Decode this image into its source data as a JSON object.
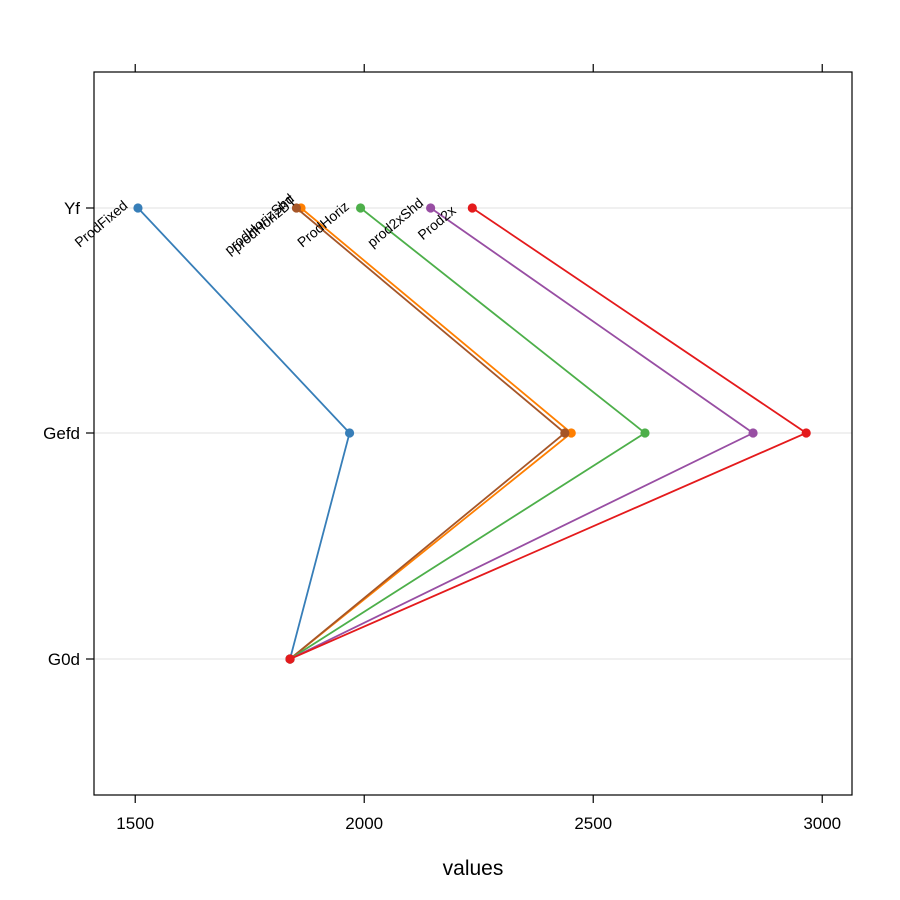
{
  "chart_data": {
    "type": "line",
    "title": "",
    "xlabel": "values",
    "ylabel": "",
    "xlim": [
      1410,
      3065
    ],
    "x_ticks": [
      1500,
      2000,
      2500,
      3000
    ],
    "x_tick_labels": [
      "1500",
      "2000",
      "2500",
      "3000"
    ],
    "categories": [
      "G0d",
      "Gefd",
      "Yf"
    ],
    "grid": true,
    "legend": "none",
    "series": [
      {
        "name": "ProdFixed",
        "color": "#377EB8",
        "values": [
          1838,
          1968,
          1506
        ]
      },
      {
        "name": "prodHorizBT",
        "color": "#FF7F00",
        "values": [
          1838,
          2452,
          1862
        ]
      },
      {
        "name": "prodHorizShd",
        "color": "#A65628",
        "values": [
          1838,
          2438,
          1852
        ]
      },
      {
        "name": "ProdHoriz",
        "color": "#4DAF4A",
        "values": [
          1838,
          2613,
          1992
        ]
      },
      {
        "name": "prod2xShd",
        "color": "#984EA3",
        "values": [
          1838,
          2849,
          2145
        ]
      },
      {
        "name": "Prod2x",
        "color": "#E41A1C",
        "values": [
          1838,
          2965,
          2236
        ]
      }
    ]
  }
}
